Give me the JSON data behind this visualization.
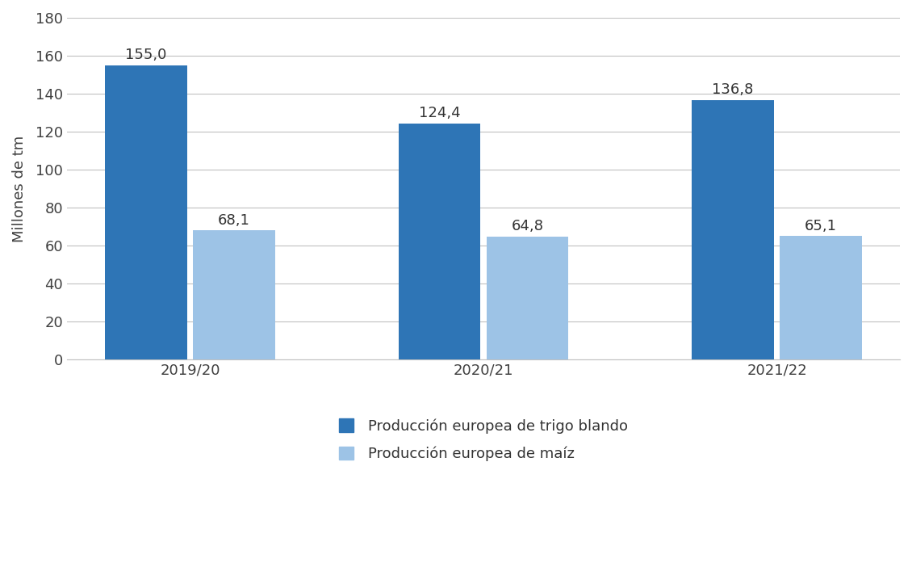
{
  "categories": [
    "2019/20",
    "2020/21",
    "2021/22"
  ],
  "trigo_values": [
    155.0,
    124.4,
    136.8
  ],
  "maiz_values": [
    68.1,
    64.8,
    65.1
  ],
  "trigo_color": "#2E75B6",
  "maiz_color": "#9DC3E6",
  "ylabel": "Millones de tm",
  "ylim": [
    0,
    180
  ],
  "yticks": [
    0,
    20,
    40,
    60,
    80,
    100,
    120,
    140,
    160,
    180
  ],
  "legend_trigo": "Producción europea de trigo blando",
  "legend_maiz": "Producción europea de maíz",
  "bar_width": 0.28,
  "label_fontsize": 13,
  "tick_fontsize": 13,
  "ylabel_fontsize": 13,
  "legend_fontsize": 13,
  "background_color": "#FFFFFF",
  "grid_color": "#C0C0C0",
  "value_format_trigo": [
    "155,0",
    "124,4",
    "136,8"
  ],
  "value_format_maiz": [
    "68,1",
    "64,8",
    "65,1"
  ]
}
